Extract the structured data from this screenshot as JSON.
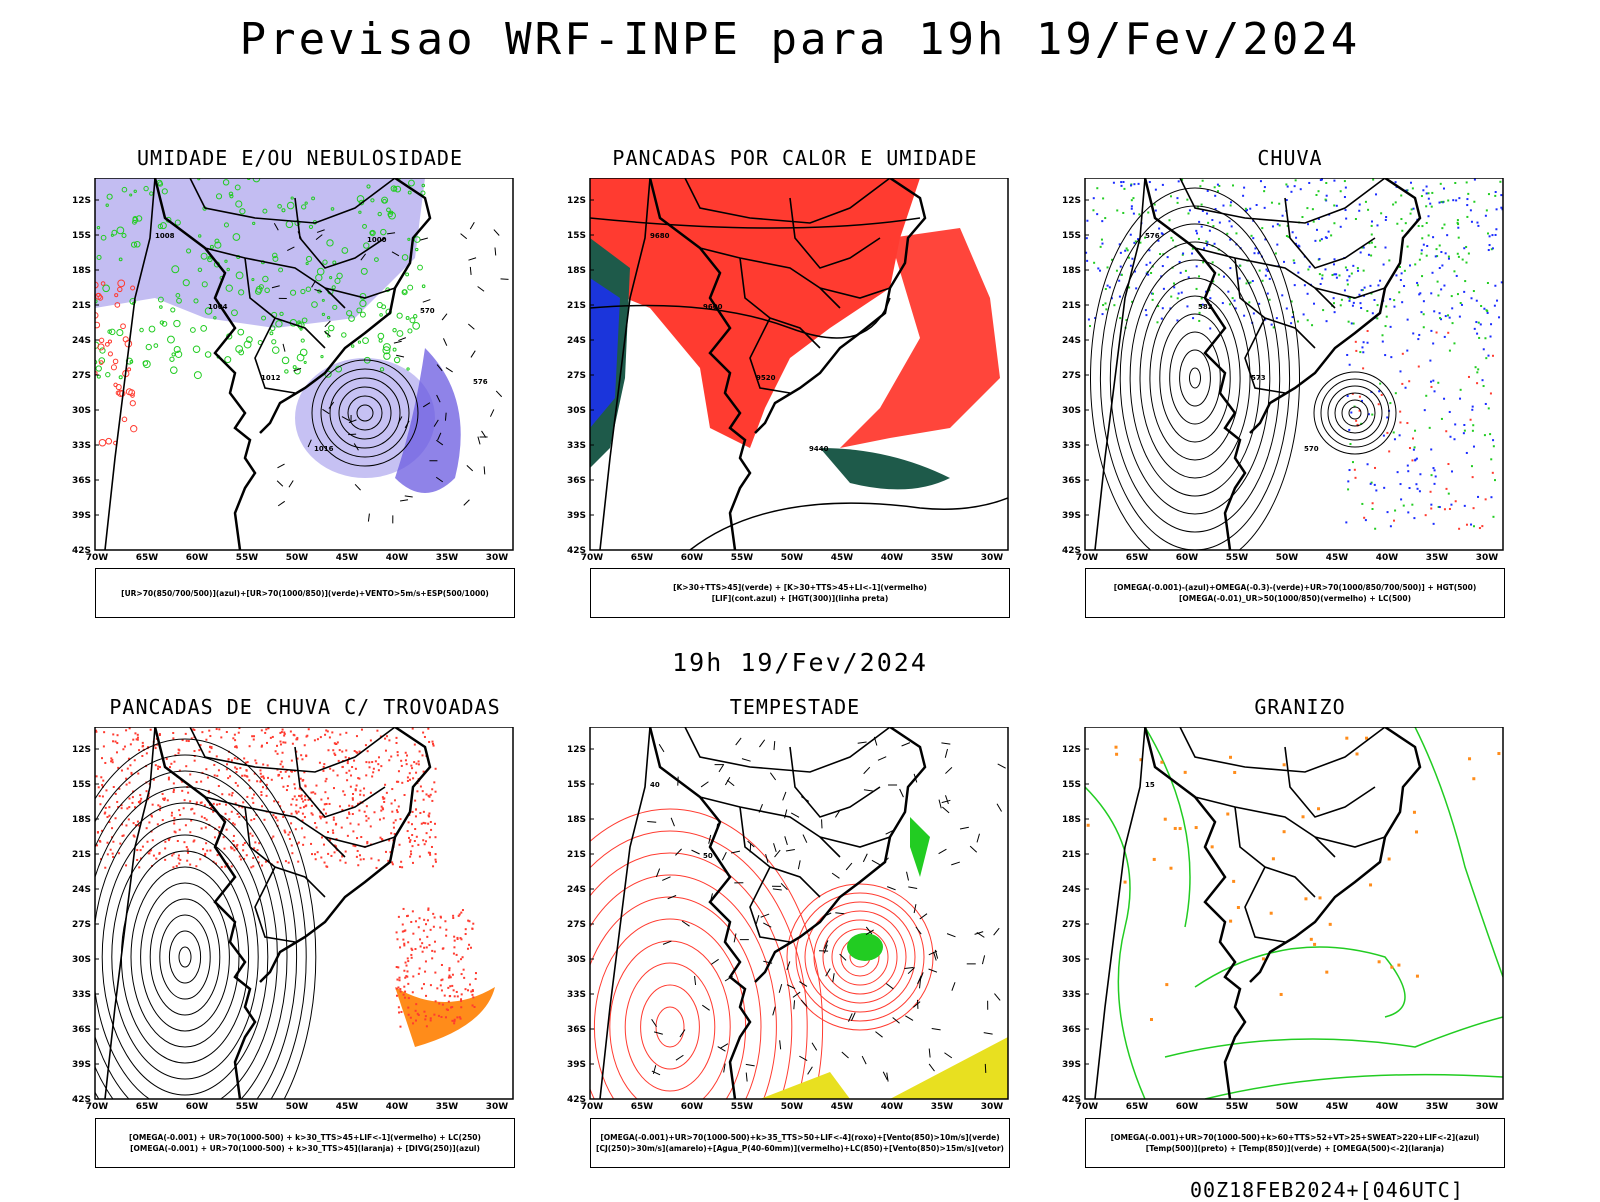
{
  "header": {
    "title": "Previsao WRF-INPE  para 19h 19/Fev/2024"
  },
  "mid_label": "19h 19/Fev/2024",
  "footer": "00Z18FEB2024+[046UTC]",
  "axes": {
    "lat_ticks": [
      "12S",
      "15S",
      "18S",
      "21S",
      "24S",
      "27S",
      "30S",
      "33S",
      "36S",
      "39S",
      "42S"
    ],
    "lon_ticks": [
      "70W",
      "65W",
      "60W",
      "55W",
      "50W",
      "45W",
      "40W",
      "35W",
      "30W"
    ]
  },
  "colors": {
    "red": "#ff3b30",
    "blue": "#1a2cff",
    "lavender": "#b8b2f0",
    "green": "#22cc22",
    "darkteal": "#1e5a4a",
    "orange": "#ff8c1a",
    "yellow": "#e8e020"
  },
  "panels": [
    {
      "title": "UMIDADE E/OU NEBULOSIDADE",
      "legend": [
        "[UR>70(850/700/500)](azul)+[UR>70(1000/850)](verde)+VENTO>5m/s+ESP(500/1000)"
      ],
      "labels": [
        "1008",
        "1004",
        "1012",
        "1016",
        "1000",
        "570",
        "576"
      ]
    },
    {
      "title": "PANCADAS POR CALOR E UMIDADE",
      "legend": [
        "[K>30+TTS>45](verde) + [K>30+TTS>45+LI<-1](vermelho)",
        "[LIF](cont.azul) + [HGT(300)](linha preta)"
      ],
      "labels": [
        "9680",
        "9600",
        "9520",
        "9440"
      ]
    },
    {
      "title": "CHUVA",
      "legend": [
        "[OMEGA(-0.001)-(azul)+OMEGA(-0.3)-(verde)+UR>70(1000/850/700/500)] + HGT(500)",
        "[OMEGA(-0.01)_UR>50(1000/850)(vermelho) + LC(500)"
      ],
      "labels": [
        "576",
        "582",
        "573",
        "570"
      ]
    },
    {
      "title": "PANCADAS DE CHUVA C/ TROVOADAS",
      "legend": [
        "[OMEGA(-0.001) + UR>70(1000-500) + k>30_TTS>45+LIF<-1](vermelho) + LC(250)",
        "[OMEGA(-0.001) + UR>70(1000-500) + k>30_TTS>45](laranja) + [DIVG(250)](azul)"
      ],
      "labels": []
    },
    {
      "title": "TEMPESTADE",
      "legend": [
        "[OMEGA(-0.001)+UR>70(1000-500)+k>35_TTS>50+LIF<-4](roxo)+[Vento(850)>10m/s](verde)",
        "[CJ(250)>30m/s](amarelo)+[Agua_P(40-60mm)](vermelho)+LC(850)+[Vento(850)>15m/s](vetor)"
      ],
      "labels": [
        "40",
        "50"
      ]
    },
    {
      "title": "GRANIZO",
      "legend": [
        "[OMEGA(-0.001)+UR>70(1000-500)+k>60+TTS>52+VT>25+SWEAT>220+LIF<-2](azul)",
        "[Temp(500)](preto) + [Temp(850)](verde) + [OMEGA(500)<-2](laranja)"
      ],
      "labels": [
        "15"
      ]
    }
  ]
}
